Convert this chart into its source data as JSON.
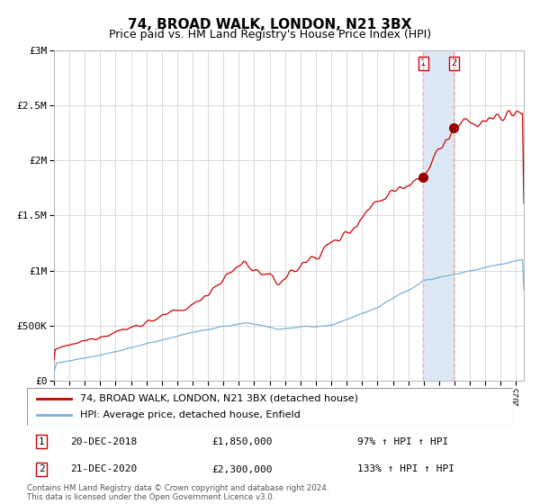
{
  "title": "74, BROAD WALK, LONDON, N21 3BX",
  "subtitle": "Price paid vs. HM Land Registry's House Price Index (HPI)",
  "ylim": [
    0,
    3000000
  ],
  "yticks": [
    0,
    500000,
    1000000,
    1500000,
    2000000,
    2500000,
    3000000
  ],
  "ytick_labels": [
    "£0",
    "£500K",
    "£1M",
    "£1.5M",
    "£2M",
    "£2.5M",
    "£3M"
  ],
  "red_line_color": "#cc0000",
  "blue_line_color": "#7bafd4",
  "marker_color": "#990000",
  "highlight_color": "#dce9f5",
  "dashed_line_color": "#ffaaaa",
  "annotation1_date": "20-DEC-2018",
  "annotation1_price": 1850000,
  "annotation1_pct": "97%",
  "annotation1_year": 2018.97,
  "annotation2_date": "21-DEC-2020",
  "annotation2_price": 2300000,
  "annotation2_pct": "133%",
  "annotation2_year": 2020.97,
  "legend_line1": "74, BROAD WALK, LONDON, N21 3BX (detached house)",
  "legend_line2": "HPI: Average price, detached house, Enfield",
  "footer": "Contains HM Land Registry data © Crown copyright and database right 2024.\nThis data is licensed under the Open Government Licence v3.0.",
  "title_fontsize": 11,
  "subtitle_fontsize": 9,
  "axis_fontsize": 8,
  "legend_fontsize": 8
}
